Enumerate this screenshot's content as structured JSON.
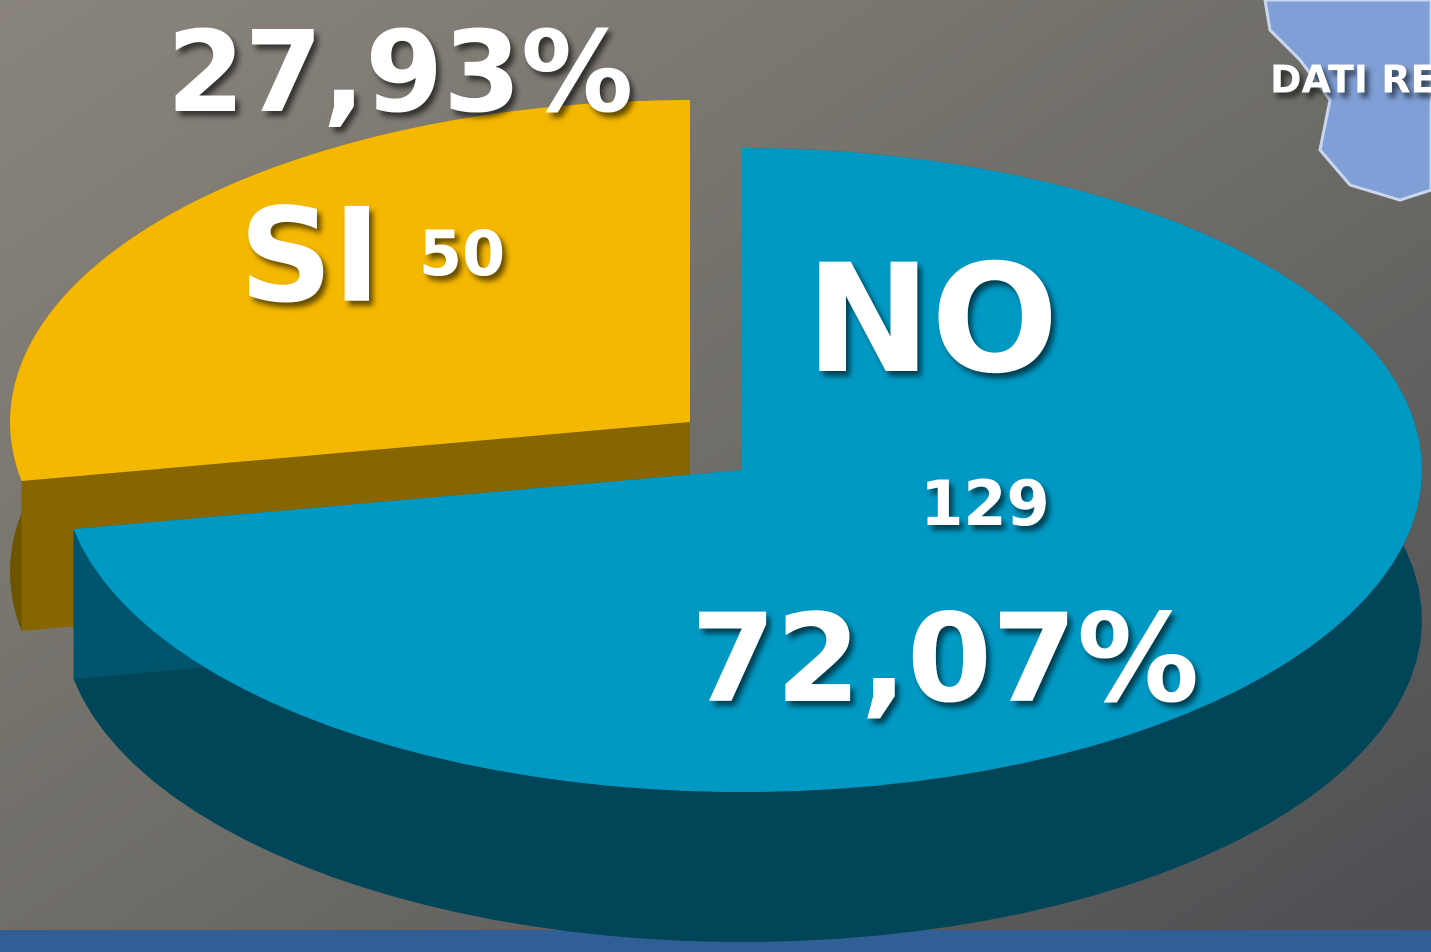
{
  "chart_data": {
    "type": "pie",
    "subtitle": "DATI REGIONALI",
    "categories": [
      "SI",
      "NO"
    ],
    "values": [
      50,
      129
    ],
    "percent_values": [
      27.93,
      72.07
    ],
    "percent_labels": [
      "27,93%",
      "72,07%"
    ],
    "colors": [
      "#f5b800",
      "#0099c4"
    ],
    "depth_3d": true
  }
}
